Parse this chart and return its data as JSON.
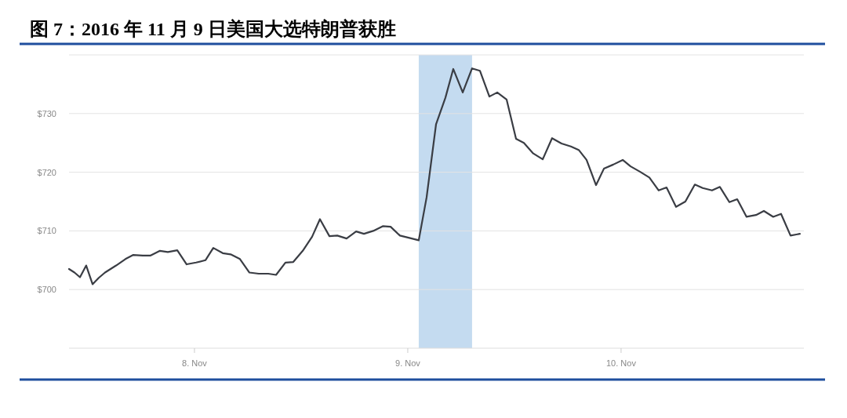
{
  "chart_data": {
    "type": "line",
    "title": "图 7：2016 年 11 月 9 日美国大选特朗普获胜",
    "x": [
      "2016-11-07T09:53",
      "2016-11-07T10:30",
      "2016-11-07T11:07",
      "2016-11-07T11:49",
      "2016-11-07T12:32",
      "2016-11-07T13:14",
      "2016-11-07T13:56",
      "2016-11-07T15:11",
      "2016-11-07T16:14",
      "2016-11-07T17:07",
      "2016-11-07T18:11",
      "2016-11-07T19:04",
      "2016-11-07T20:07",
      "2016-11-07T21:00",
      "2016-11-07T22:04",
      "2016-11-07T23:07",
      "2016-11-08T00:11",
      "2016-11-08T01:14",
      "2016-11-08T02:07",
      "2016-11-08T03:11",
      "2016-11-08T04:04",
      "2016-11-08T05:07",
      "2016-11-08T06:11",
      "2016-11-08T07:14",
      "2016-11-08T08:18",
      "2016-11-08T09:11",
      "2016-11-08T10:14",
      "2016-11-08T11:07",
      "2016-11-08T12:11",
      "2016-11-08T13:14",
      "2016-11-08T14:07",
      "2016-11-08T15:11",
      "2016-11-08T16:04",
      "2016-11-08T17:07",
      "2016-11-08T18:11",
      "2016-11-08T19:04",
      "2016-11-08T20:07",
      "2016-11-08T21:11",
      "2016-11-08T22:04",
      "2016-11-08T23:07",
      "2016-11-09T00:11",
      "2016-11-09T01:14",
      "2016-11-09T02:07",
      "2016-11-09T03:11",
      "2016-11-09T04:14",
      "2016-11-09T05:07",
      "2016-11-09T06:11",
      "2016-11-09T07:14",
      "2016-11-09T08:07",
      "2016-11-09T09:11",
      "2016-11-09T10:04",
      "2016-11-09T11:07",
      "2016-11-09T12:11",
      "2016-11-09T13:04",
      "2016-11-09T14:07",
      "2016-11-09T15:11",
      "2016-11-09T16:14",
      "2016-11-09T17:18",
      "2016-11-09T18:21",
      "2016-11-09T19:14",
      "2016-11-09T20:07",
      "2016-11-09T21:11",
      "2016-11-09T22:04",
      "2016-11-09T23:07",
      "2016-11-10T00:11",
      "2016-11-10T01:04",
      "2016-11-10T02:07",
      "2016-11-10T03:11",
      "2016-11-10T04:14",
      "2016-11-10T05:07",
      "2016-11-10T06:11",
      "2016-11-10T07:14",
      "2016-11-10T08:18",
      "2016-11-10T09:11",
      "2016-11-10T10:14",
      "2016-11-10T11:07",
      "2016-11-10T12:11",
      "2016-11-10T13:04",
      "2016-11-10T14:07",
      "2016-11-10T15:11",
      "2016-11-10T16:04",
      "2016-11-10T17:07",
      "2016-11-10T18:00",
      "2016-11-10T19:04",
      "2016-11-10T20:07"
    ],
    "series": [
      {
        "color": "#3a3d44",
        "values": [
          703.5,
          702.9,
          702.1,
          704.1,
          700.9,
          702.0,
          702.9,
          704.1,
          705.2,
          705.9,
          705.8,
          705.8,
          706.6,
          706.4,
          706.7,
          704.3,
          704.6,
          705.0,
          707.1,
          706.2,
          706.0,
          705.2,
          702.9,
          702.7,
          702.7,
          702.5,
          704.6,
          704.7,
          706.6,
          709.0,
          712.0,
          709.1,
          709.2,
          708.7,
          709.9,
          709.5,
          710.0,
          710.8,
          710.7,
          709.2,
          708.8,
          708.4,
          715.7,
          728.2,
          732.7,
          737.6,
          733.6,
          737.7,
          737.3,
          732.9,
          733.6,
          732.4,
          725.7,
          725.0,
          723.2,
          722.2,
          725.8,
          724.9,
          724.4,
          723.8,
          722.1,
          717.8,
          720.6,
          721.3,
          722.1,
          721.0,
          720.1,
          719.1,
          716.9,
          717.4,
          714.1,
          715.0,
          717.9,
          717.3,
          716.9,
          717.5,
          714.9,
          715.4,
          712.4,
          712.7,
          713.4,
          712.4,
          712.9,
          709.2,
          709.5
        ]
      }
    ],
    "xlim": [
      "2016-11-07T09:53",
      "2016-11-10T20:34"
    ],
    "xticks": [
      {
        "value": "2016-11-08",
        "label": "8. Nov"
      },
      {
        "value": "2016-11-09",
        "label": "9. Nov"
      },
      {
        "value": "2016-11-10",
        "label": "10. Nov"
      }
    ],
    "ylim": [
      690,
      740
    ],
    "yticks": [
      {
        "value": 700,
        "label": "$700"
      },
      {
        "value": 710,
        "label": "$710"
      },
      {
        "value": 720,
        "label": "$720"
      },
      {
        "value": 730,
        "label": "$730"
      }
    ],
    "bands": [
      {
        "axis": "x",
        "from": "2016-11-09T01:14",
        "to": "2016-11-09T07:14",
        "color": "#c4dbf0"
      }
    ],
    "grid": "y"
  }
}
